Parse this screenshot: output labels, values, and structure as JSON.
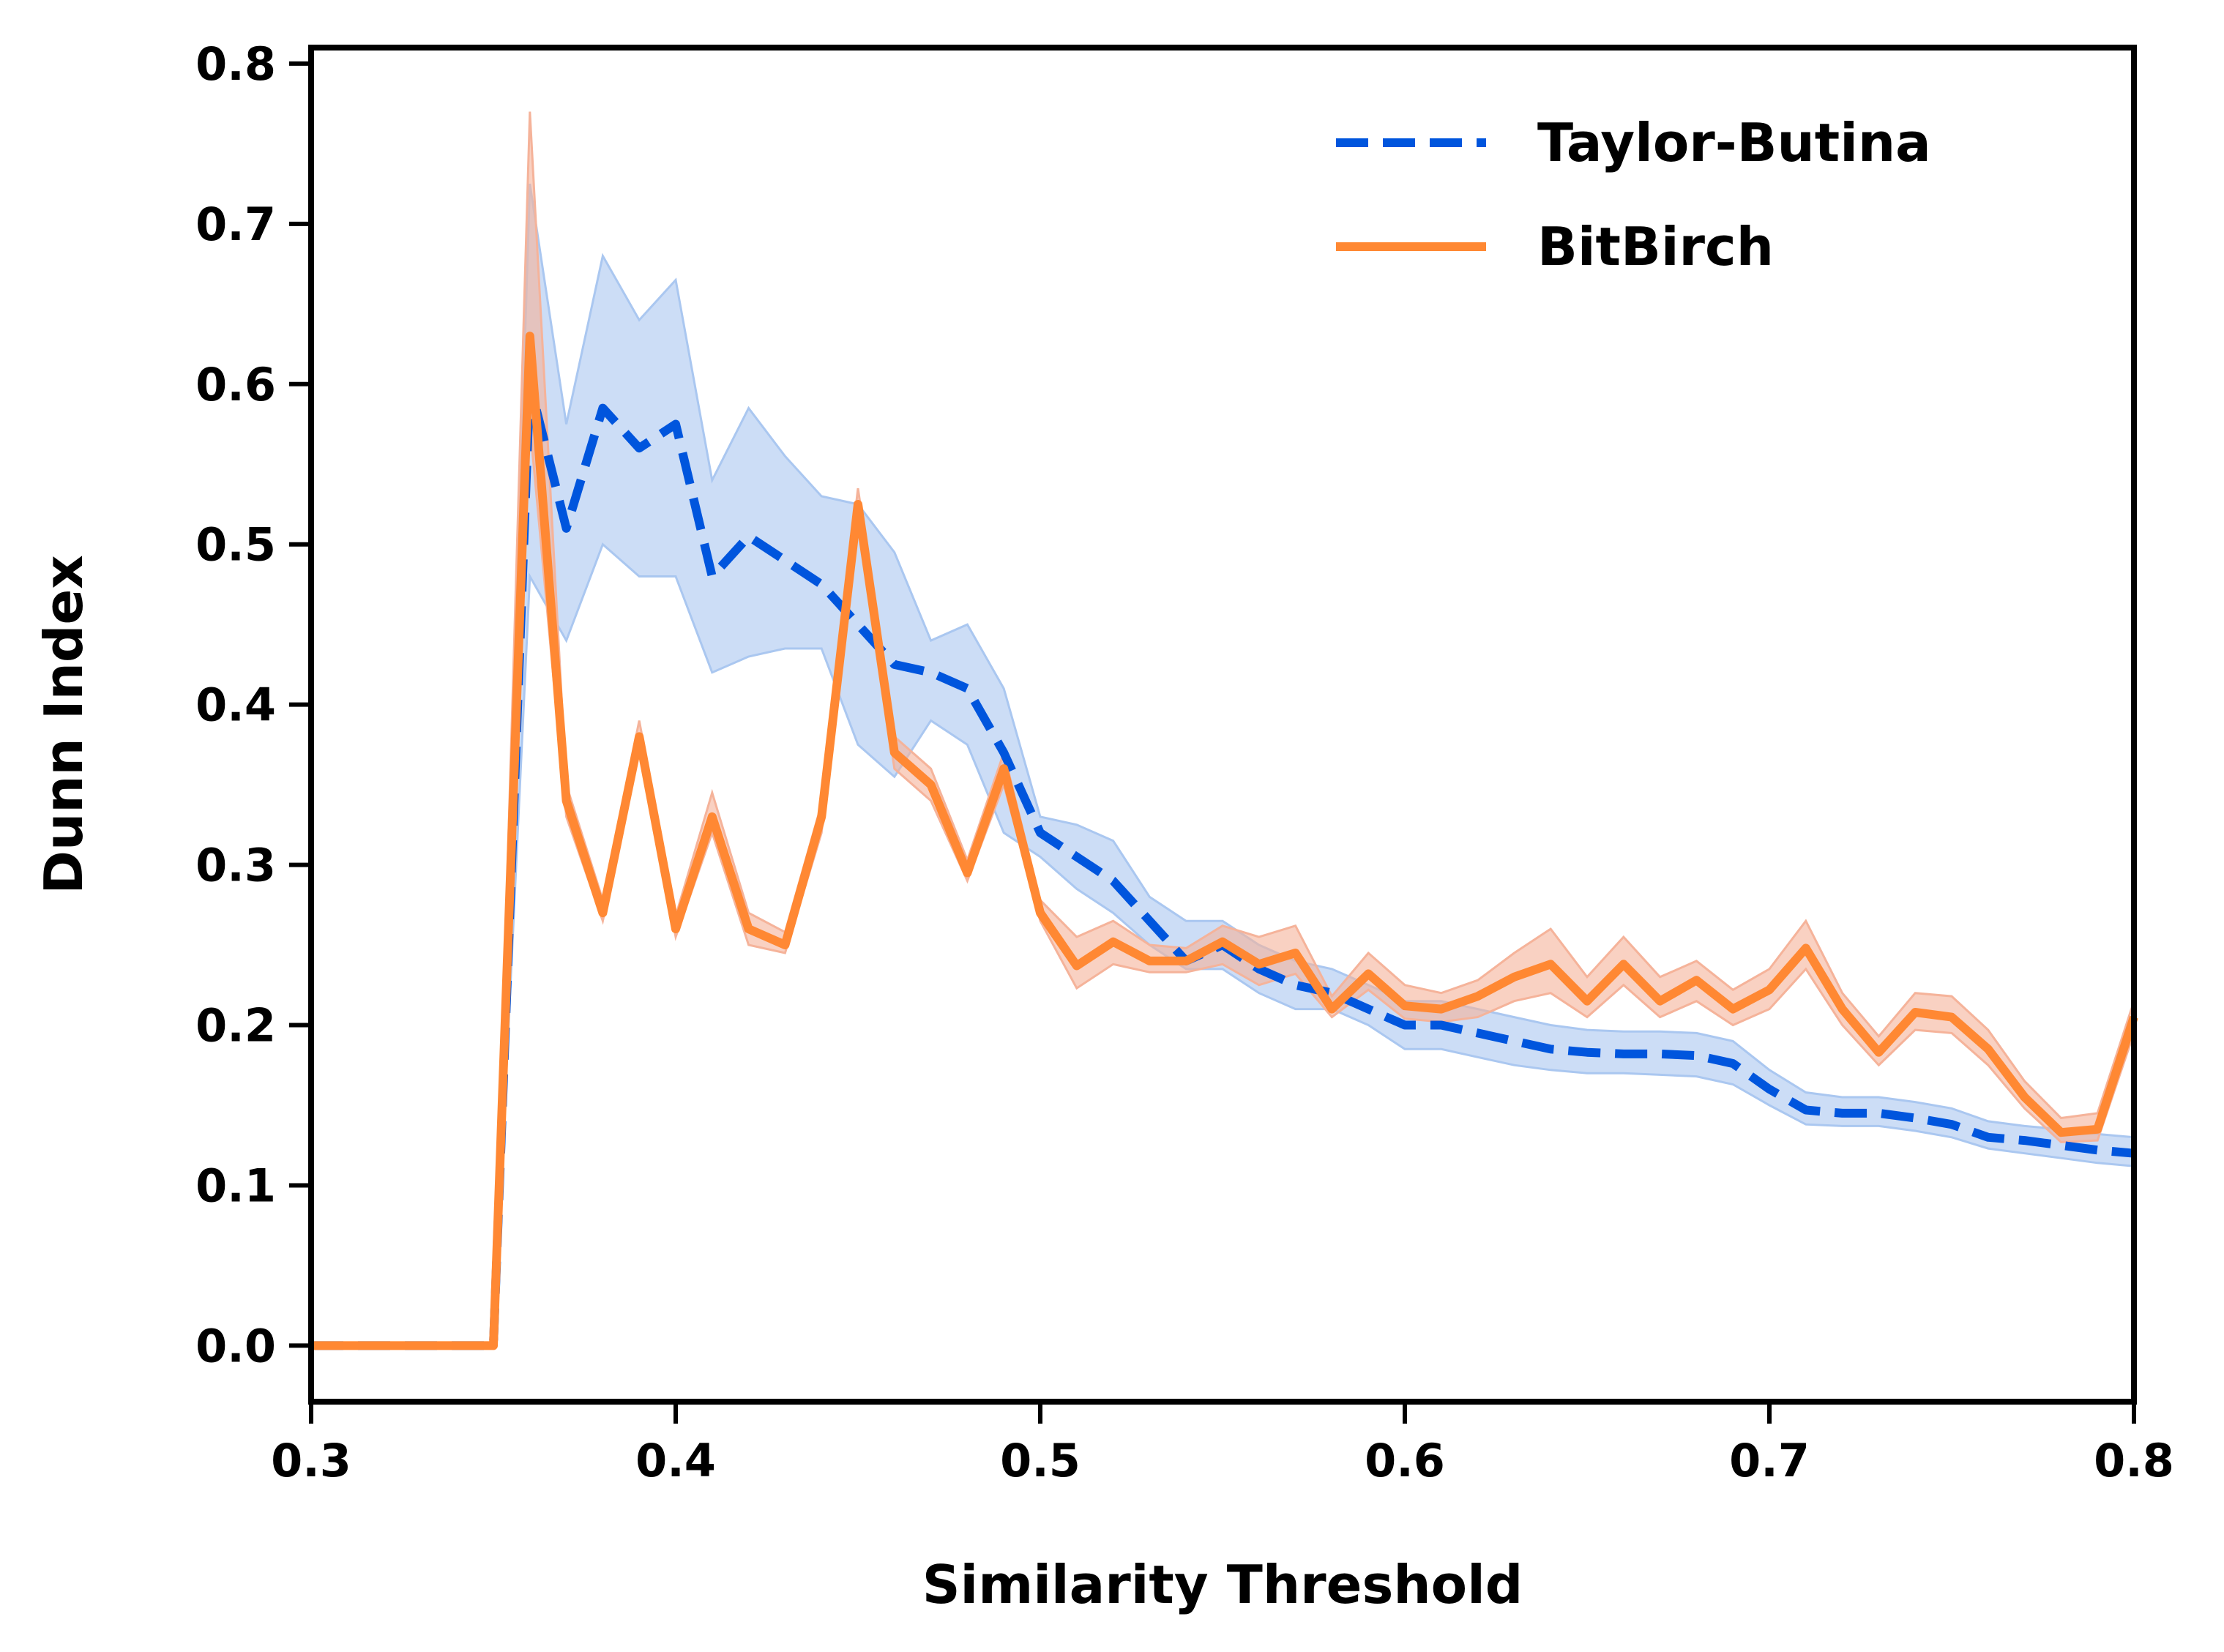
{
  "chart_data": {
    "type": "line",
    "xlabel": "Similarity Threshold",
    "ylabel": "Dunn Index",
    "xlim": [
      0.3,
      0.8
    ],
    "ylim": [
      -0.035,
      0.81
    ],
    "xticks": [
      "0.3",
      "0.4",
      "0.5",
      "0.6",
      "0.7",
      "0.8"
    ],
    "yticks": [
      "0.0",
      "0.1",
      "0.2",
      "0.3",
      "0.4",
      "0.5",
      "0.6",
      "0.7",
      "0.8"
    ],
    "grid": false,
    "legend_position": "top-right",
    "x": [
      0.3,
      0.31,
      0.32,
      0.33,
      0.34,
      0.35,
      0.36,
      0.37,
      0.38,
      0.39,
      0.4,
      0.41,
      0.42,
      0.43,
      0.44,
      0.45,
      0.46,
      0.47,
      0.48,
      0.49,
      0.5,
      0.51,
      0.52,
      0.53,
      0.54,
      0.55,
      0.56,
      0.57,
      0.58,
      0.59,
      0.6,
      0.61,
      0.62,
      0.63,
      0.64,
      0.65,
      0.66,
      0.67,
      0.68,
      0.69,
      0.7,
      0.71,
      0.72,
      0.73,
      0.74,
      0.75,
      0.76,
      0.77,
      0.78,
      0.79,
      0.8
    ],
    "series": [
      {
        "name": "Taylor-Butina",
        "color": "#0055dd",
        "band_color": "#aac7f0",
        "style": "dashed",
        "values": [
          0,
          0,
          0,
          0,
          0,
          0,
          0.6,
          0.51,
          0.585,
          0.56,
          0.575,
          0.48,
          0.505,
          0.49,
          0.475,
          0.45,
          0.425,
          0.42,
          0.41,
          0.37,
          0.32,
          0.305,
          0.29,
          0.265,
          0.24,
          0.25,
          0.235,
          0.225,
          0.22,
          0.21,
          0.2,
          0.2,
          0.195,
          0.19,
          0.185,
          0.183,
          0.182,
          0.182,
          0.181,
          0.176,
          0.16,
          0.147,
          0.145,
          0.145,
          0.142,
          0.138,
          0.13,
          0.128,
          0.125,
          0.122,
          0.12
        ],
        "lower": [
          0,
          0,
          0,
          0,
          0,
          0,
          0.48,
          0.44,
          0.5,
          0.48,
          0.48,
          0.42,
          0.43,
          0.435,
          0.435,
          0.375,
          0.355,
          0.39,
          0.375,
          0.32,
          0.305,
          0.285,
          0.27,
          0.25,
          0.235,
          0.235,
          0.22,
          0.21,
          0.21,
          0.2,
          0.185,
          0.185,
          0.18,
          0.175,
          0.172,
          0.17,
          0.17,
          0.169,
          0.168,
          0.163,
          0.15,
          0.138,
          0.137,
          0.137,
          0.134,
          0.13,
          0.123,
          0.12,
          0.117,
          0.114,
          0.112
        ],
        "upper": [
          0,
          0,
          0,
          0,
          0,
          0,
          0.725,
          0.575,
          0.68,
          0.64,
          0.665,
          0.54,
          0.585,
          0.555,
          0.53,
          0.525,
          0.495,
          0.44,
          0.45,
          0.41,
          0.33,
          0.325,
          0.315,
          0.28,
          0.265,
          0.265,
          0.25,
          0.24,
          0.235,
          0.225,
          0.215,
          0.215,
          0.21,
          0.205,
          0.2,
          0.197,
          0.196,
          0.196,
          0.195,
          0.19,
          0.172,
          0.158,
          0.155,
          0.155,
          0.152,
          0.148,
          0.14,
          0.137,
          0.135,
          0.132,
          0.13
        ]
      },
      {
        "name": "BitBirch",
        "color": "#ff8833",
        "band_color": "#f5b39a",
        "style": "solid",
        "values": [
          0,
          0,
          0,
          0,
          0,
          0,
          0.63,
          0.34,
          0.27,
          0.38,
          0.26,
          0.33,
          0.26,
          0.25,
          0.33,
          0.525,
          0.37,
          0.35,
          0.295,
          0.36,
          0.27,
          0.237,
          0.252,
          0.24,
          0.24,
          0.252,
          0.238,
          0.245,
          0.21,
          0.232,
          0.212,
          0.21,
          0.218,
          0.23,
          0.238,
          0.215,
          0.238,
          0.215,
          0.228,
          0.21,
          0.222,
          0.248,
          0.21,
          0.183,
          0.208,
          0.205,
          0.185,
          0.155,
          0.133,
          0.135,
          0.205
        ],
        "lower": [
          0,
          0,
          0,
          0,
          0,
          0,
          0.575,
          0.33,
          0.265,
          0.37,
          0.255,
          0.32,
          0.25,
          0.245,
          0.32,
          0.515,
          0.36,
          0.34,
          0.29,
          0.35,
          0.265,
          0.223,
          0.238,
          0.233,
          0.233,
          0.238,
          0.225,
          0.232,
          0.205,
          0.222,
          0.204,
          0.202,
          0.205,
          0.215,
          0.22,
          0.205,
          0.225,
          0.205,
          0.215,
          0.2,
          0.21,
          0.235,
          0.2,
          0.175,
          0.197,
          0.195,
          0.175,
          0.148,
          0.127,
          0.128,
          0.195
        ],
        "upper": [
          0,
          0,
          0,
          0,
          0,
          0,
          0.77,
          0.35,
          0.278,
          0.39,
          0.268,
          0.345,
          0.27,
          0.258,
          0.338,
          0.535,
          0.38,
          0.36,
          0.303,
          0.37,
          0.278,
          0.255,
          0.265,
          0.25,
          0.248,
          0.262,
          0.255,
          0.262,
          0.218,
          0.245,
          0.225,
          0.22,
          0.228,
          0.245,
          0.26,
          0.23,
          0.255,
          0.23,
          0.24,
          0.222,
          0.235,
          0.265,
          0.22,
          0.193,
          0.22,
          0.218,
          0.197,
          0.165,
          0.142,
          0.145,
          0.215
        ]
      }
    ]
  }
}
